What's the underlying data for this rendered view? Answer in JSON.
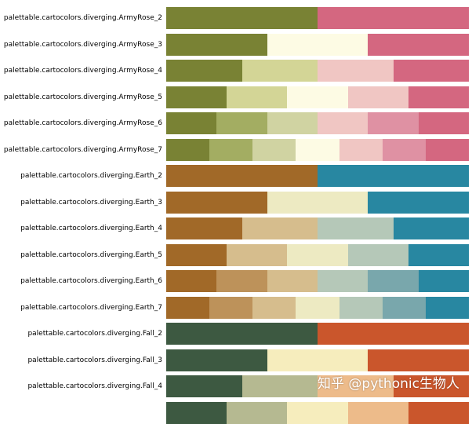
{
  "chart_data": {
    "type": "palette-swatches",
    "palettes": [
      {
        "name": "palettable.cartocolors.diverging.ArmyRose_2",
        "colors": [
          "#798234",
          "#d46780"
        ]
      },
      {
        "name": "palettable.cartocolors.diverging.ArmyRose_3",
        "colors": [
          "#798234",
          "#fdfbe4",
          "#d46780"
        ]
      },
      {
        "name": "palettable.cartocolors.diverging.ArmyRose_4",
        "colors": [
          "#798234",
          "#d3d596",
          "#f0c6c3",
          "#d46780"
        ]
      },
      {
        "name": "palettable.cartocolors.diverging.ArmyRose_5",
        "colors": [
          "#798234",
          "#d3d596",
          "#fdfbe4",
          "#f0c6c3",
          "#d46780"
        ]
      },
      {
        "name": "palettable.cartocolors.diverging.ArmyRose_6",
        "colors": [
          "#798234",
          "#a3ad62",
          "#d0d3a2",
          "#f0c6c3",
          "#df91a3",
          "#d46780"
        ]
      },
      {
        "name": "palettable.cartocolors.diverging.ArmyRose_7",
        "colors": [
          "#798234",
          "#a3ad62",
          "#d0d3a2",
          "#fdfbe4",
          "#f0c6c3",
          "#df91a3",
          "#d46780"
        ]
      },
      {
        "name": "palettable.cartocolors.diverging.Earth_2",
        "colors": [
          "#a16928",
          "#2887a1"
        ]
      },
      {
        "name": "palettable.cartocolors.diverging.Earth_3",
        "colors": [
          "#a16928",
          "#edeac2",
          "#2887a1"
        ]
      },
      {
        "name": "palettable.cartocolors.diverging.Earth_4",
        "colors": [
          "#a16928",
          "#d6bd8d",
          "#b5c8b8",
          "#2887a1"
        ]
      },
      {
        "name": "palettable.cartocolors.diverging.Earth_5",
        "colors": [
          "#a16928",
          "#d6bd8d",
          "#edeac2",
          "#b5c8b8",
          "#2887a1"
        ]
      },
      {
        "name": "palettable.cartocolors.diverging.Earth_6",
        "colors": [
          "#a16928",
          "#bd925a",
          "#d6bd8d",
          "#b5c8b8",
          "#79a7ac",
          "#2887a1"
        ]
      },
      {
        "name": "palettable.cartocolors.diverging.Earth_7",
        "colors": [
          "#a16928",
          "#bd925a",
          "#d6bd8d",
          "#edeac2",
          "#b5c8b8",
          "#79a7ac",
          "#2887a1"
        ]
      },
      {
        "name": "palettable.cartocolors.diverging.Fall_2",
        "colors": [
          "#3d5941",
          "#ca562c"
        ]
      },
      {
        "name": "palettable.cartocolors.diverging.Fall_3",
        "colors": [
          "#3d5941",
          "#f6edbd",
          "#ca562c"
        ]
      },
      {
        "name": "palettable.cartocolors.diverging.Fall_4",
        "colors": [
          "#3d5941",
          "#b5b991",
          "#edbb8a",
          "#ca562c"
        ]
      },
      {
        "name": "",
        "colors": [
          "#3d5941",
          "#b5b991",
          "#f6edbd",
          "#edbb8a",
          "#ca562c"
        ]
      }
    ]
  },
  "watermark": "知乎 @pythonic生物人"
}
